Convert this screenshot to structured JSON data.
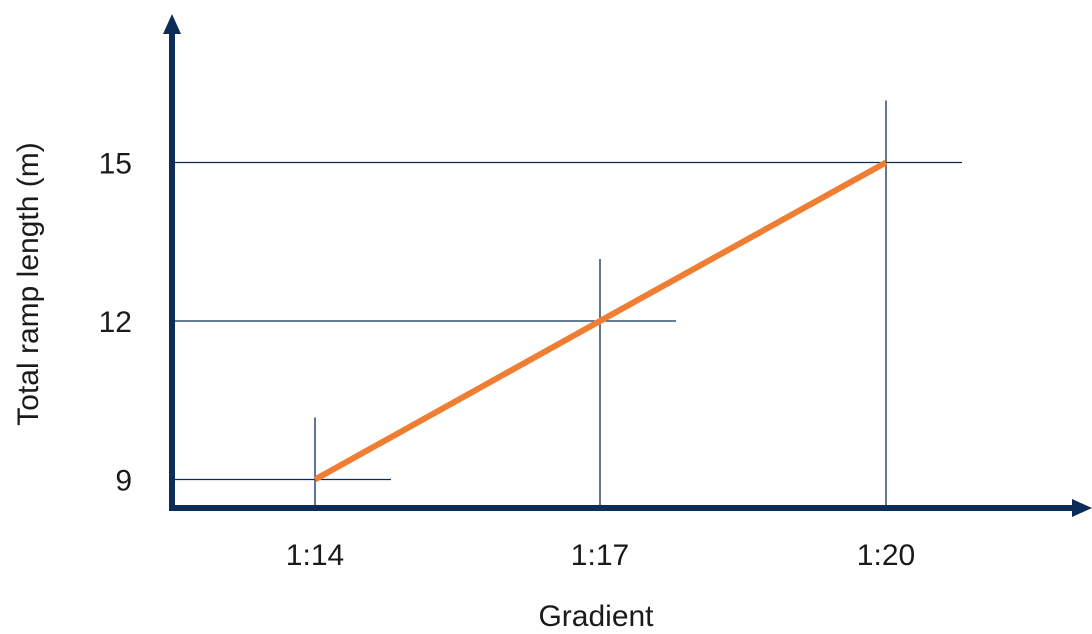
{
  "chart_data": {
    "type": "line",
    "title": "",
    "xlabel": "Gradient",
    "ylabel": "Total ramp length (m)",
    "categories": [
      "1:14",
      "1:17",
      "1:20"
    ],
    "x_ticks": [
      "1:14",
      "1:17",
      "1:20"
    ],
    "y_ticks": [
      9,
      12,
      15
    ],
    "ylim": [
      6,
      18
    ],
    "series": [
      {
        "values": [
          9,
          12,
          15
        ],
        "color": "#ef7d32"
      }
    ],
    "grid": false,
    "reference_lines": true,
    "axis_color": "#0c2d57",
    "reference_line_color": "#0c2d57"
  }
}
